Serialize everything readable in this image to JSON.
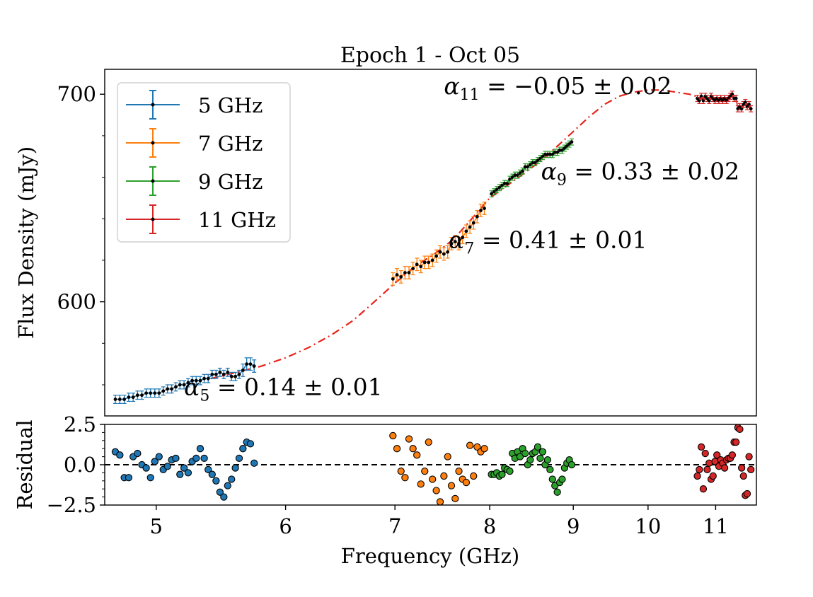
{
  "chart_data": [
    {
      "type": "scatter",
      "title": "Epoch 1 - Oct 05",
      "xlabel": "",
      "ylabel": "Flux Density (mJy)",
      "xscale": "log",
      "xlim": [
        4.65,
        11.65
      ],
      "ylim": [
        545,
        712
      ],
      "yticks": [
        600,
        700
      ],
      "ytick_labels": [
        "600",
        "700"
      ],
      "legend": {
        "placement": "top-left",
        "entries": [
          "5 GHz",
          "7 GHz",
          "9 GHz",
          "11 GHz"
        ]
      },
      "colors": {
        "5 GHz": "#1f77b4",
        "7 GHz": "#ff7f0e",
        "9 GHz": "#2ca02c",
        "11 GHz": "#d62728",
        "fit": "#e8231a"
      },
      "annotations": [
        {
          "sym": "α",
          "sub": "5",
          "text": " = 0.14 ± 0.01",
          "x": 5.2,
          "y": 555
        },
        {
          "sym": "α",
          "sub": "7",
          "text": " = 0.41 ± 0.01",
          "x": 7.55,
          "y": 626
        },
        {
          "sym": "α",
          "sub": "9",
          "text": " = 0.33 ± 0.02",
          "x": 8.6,
          "y": 659
        },
        {
          "sym": "α",
          "sub": "11",
          "text": " = −0.05 ± 0.02",
          "x": 7.5,
          "y": 700
        }
      ],
      "series": [
        {
          "name": "5 GHz",
          "x": [
            4.72,
            4.75,
            4.78,
            4.81,
            4.84,
            4.87,
            4.9,
            4.93,
            4.96,
            4.99,
            5.02,
            5.05,
            5.08,
            5.11,
            5.14,
            5.17,
            5.2,
            5.23,
            5.26,
            5.29,
            5.32,
            5.35,
            5.38,
            5.41,
            5.44,
            5.47,
            5.5,
            5.53,
            5.56,
            5.59,
            5.62,
            5.65,
            5.68,
            5.71,
            5.74
          ],
          "y": [
            553,
            553,
            553,
            554,
            554,
            555,
            555,
            556,
            556,
            556,
            556,
            557,
            558,
            558,
            559,
            560,
            560,
            561,
            562,
            562,
            562,
            563,
            563,
            565,
            565,
            566,
            565,
            566,
            564,
            564,
            565,
            567,
            570,
            570,
            569
          ],
          "err": [
            2,
            2,
            2,
            2,
            2,
            2,
            2,
            2,
            2,
            2,
            2,
            2,
            2,
            2,
            2,
            2,
            2,
            2,
            2,
            2,
            2,
            2,
            2,
            2,
            2,
            2,
            2,
            2,
            2,
            2,
            2,
            3,
            3,
            3,
            3
          ]
        },
        {
          "name": "7 GHz",
          "x": [
            6.98,
            7.02,
            7.06,
            7.1,
            7.14,
            7.18,
            7.22,
            7.26,
            7.3,
            7.34,
            7.38,
            7.42,
            7.46,
            7.5,
            7.54,
            7.58,
            7.62,
            7.66,
            7.7,
            7.74,
            7.78,
            7.82,
            7.86,
            7.9,
            7.94
          ],
          "y": [
            611,
            613,
            612,
            614,
            614,
            616,
            618,
            617,
            619,
            619,
            620,
            622,
            624,
            623,
            624,
            628,
            629,
            628,
            631,
            634,
            636,
            638,
            641,
            644,
            645
          ],
          "err": [
            3,
            3,
            3,
            3,
            3,
            3,
            3,
            3,
            3,
            3,
            3,
            3,
            3,
            3,
            3,
            3,
            3,
            3,
            3,
            3,
            3,
            3,
            3,
            3,
            3
          ]
        },
        {
          "name": "9 GHz",
          "x": [
            8.02,
            8.05,
            8.08,
            8.11,
            8.14,
            8.17,
            8.2,
            8.23,
            8.26,
            8.29,
            8.32,
            8.35,
            8.38,
            8.41,
            8.44,
            8.47,
            8.5,
            8.53,
            8.56,
            8.59,
            8.62,
            8.65,
            8.68,
            8.71,
            8.74,
            8.77,
            8.8,
            8.83,
            8.86,
            8.89,
            8.92,
            8.95,
            8.98
          ],
          "y": [
            652,
            653,
            654,
            655,
            656,
            657,
            657,
            659,
            660,
            661,
            661,
            662,
            663,
            665,
            665,
            666,
            667,
            667,
            668,
            669,
            670,
            671,
            671,
            671,
            671,
            672,
            672,
            673,
            673,
            674,
            675,
            676,
            677
          ],
          "err": [
            1.5,
            1.5,
            1.5,
            1.5,
            1.5,
            1.5,
            1.5,
            1.5,
            1.5,
            1.5,
            1.5,
            1.5,
            1.5,
            1.5,
            1.5,
            1.5,
            1.5,
            1.5,
            1.5,
            1.5,
            1.5,
            1.5,
            1.5,
            1.5,
            1.5,
            1.5,
            1.5,
            1.5,
            1.5,
            1.5,
            1.5,
            1.5,
            1.5
          ]
        },
        {
          "name": "11 GHz",
          "x": [
            10.72,
            10.75,
            10.78,
            10.81,
            10.84,
            10.87,
            10.9,
            10.93,
            10.96,
            10.99,
            11.02,
            11.05,
            11.08,
            11.11,
            11.14,
            11.17,
            11.2,
            11.23,
            11.26,
            11.29,
            11.32,
            11.35,
            11.38,
            11.41,
            11.44,
            11.47,
            11.5,
            11.53,
            11.56
          ],
          "y": [
            698,
            697,
            699,
            697,
            699,
            698,
            697,
            699,
            698,
            697,
            698,
            697,
            698,
            697,
            698,
            697,
            698,
            699,
            700,
            698,
            698,
            693,
            694,
            693,
            695,
            696,
            694,
            695,
            693
          ],
          "err": [
            1.5,
            1.5,
            1.5,
            1.5,
            1.5,
            1.5,
            1.5,
            1.5,
            1.5,
            1.5,
            1.5,
            1.5,
            1.5,
            1.5,
            1.5,
            1.5,
            1.5,
            1.5,
            1.5,
            1.5,
            1.5,
            1.5,
            1.5,
            1.5,
            1.5,
            1.5,
            1.5,
            1.5,
            1.5
          ]
        }
      ],
      "fit": {
        "style": "dash-dot",
        "x": [
          5.4,
          5.6,
          5.8,
          6.0,
          6.2,
          6.4,
          6.6,
          6.8,
          7.0,
          7.2,
          7.4,
          7.6,
          7.8,
          8.0,
          8.2,
          8.4,
          8.6,
          8.8,
          9.0,
          9.2,
          9.4,
          9.6,
          9.8,
          10.0,
          10.2,
          10.4,
          10.6,
          10.8
        ],
        "y": [
          563,
          566,
          569,
          573,
          578,
          584,
          591,
          600,
          609,
          617,
          623,
          630,
          640,
          650,
          656,
          662,
          668,
          675,
          682,
          689,
          695,
          699,
          701,
          702,
          702,
          701,
          700,
          698
        ]
      }
    },
    {
      "type": "scatter",
      "title": "",
      "xlabel": "Frequency (GHz)",
      "ylabel": "Residual",
      "xscale": "log",
      "xlim": [
        4.65,
        11.65
      ],
      "ylim": [
        -2.5,
        2.5
      ],
      "yticks": [
        -2.5,
        0.0,
        2.5
      ],
      "ytick_labels": [
        "−2.5",
        "0.0",
        "2.5"
      ],
      "xticks": [
        5,
        6,
        7,
        8,
        9,
        10,
        11
      ],
      "xtick_labels": [
        "5",
        "6",
        "7",
        "8",
        "9",
        "10",
        "11"
      ],
      "reference_line": {
        "y": 0,
        "style": "dashed"
      },
      "series": [
        {
          "name": "5 GHz",
          "x": [
            4.72,
            4.75,
            4.78,
            4.81,
            4.84,
            4.87,
            4.9,
            4.93,
            4.96,
            4.99,
            5.02,
            5.05,
            5.08,
            5.11,
            5.14,
            5.17,
            5.2,
            5.23,
            5.26,
            5.29,
            5.32,
            5.35,
            5.38,
            5.41,
            5.44,
            5.47,
            5.5,
            5.53,
            5.56,
            5.59,
            5.62,
            5.65,
            5.68,
            5.71,
            5.74
          ],
          "y": [
            0.8,
            0.6,
            -0.8,
            -0.8,
            0.5,
            0.7,
            0.0,
            -0.2,
            -0.8,
            0.2,
            0.5,
            -0.3,
            -0.1,
            0.3,
            0.4,
            -0.6,
            -0.2,
            -0.5,
            0.2,
            0.4,
            1.0,
            0.4,
            -0.3,
            -0.6,
            -1.0,
            -1.7,
            -2.0,
            -1.3,
            -0.9,
            -0.2,
            0.4,
            1.0,
            1.4,
            1.3,
            0.1
          ]
        },
        {
          "name": "7 GHz",
          "x": [
            6.98,
            7.02,
            7.06,
            7.1,
            7.14,
            7.18,
            7.22,
            7.26,
            7.3,
            7.34,
            7.38,
            7.42,
            7.46,
            7.5,
            7.54,
            7.58,
            7.62,
            7.66,
            7.7,
            7.74,
            7.78,
            7.82,
            7.86,
            7.9,
            7.94
          ],
          "y": [
            1.8,
            1.0,
            -0.4,
            -0.8,
            1.6,
            1.0,
            0.6,
            -1.2,
            -0.4,
            1.4,
            -0.9,
            -1.6,
            -2.3,
            -0.7,
            0.5,
            -1.3,
            -2.1,
            -0.4,
            -0.9,
            -1.1,
            1.2,
            -0.7,
            1.1,
            0.8,
            1.0
          ]
        },
        {
          "name": "9 GHz",
          "x": [
            8.02,
            8.05,
            8.08,
            8.11,
            8.14,
            8.17,
            8.2,
            8.23,
            8.26,
            8.29,
            8.32,
            8.35,
            8.38,
            8.41,
            8.44,
            8.47,
            8.5,
            8.53,
            8.56,
            8.59,
            8.62,
            8.65,
            8.68,
            8.71,
            8.74,
            8.77,
            8.8,
            8.83,
            8.86,
            8.89,
            8.92,
            8.95,
            8.98
          ],
          "y": [
            -0.6,
            -0.6,
            -0.5,
            -0.7,
            -0.6,
            -0.2,
            -0.3,
            -0.4,
            0.7,
            0.4,
            0.8,
            0.5,
            1.0,
            0.7,
            0.0,
            0.3,
            0.7,
            0.8,
            1.1,
            0.4,
            0.8,
            0.0,
            0.3,
            -0.3,
            -0.9,
            -1.3,
            -1.7,
            -1.1,
            -0.9,
            -0.2,
            0.1,
            0.3,
            0.0
          ]
        },
        {
          "name": "11 GHz",
          "x": [
            10.72,
            10.75,
            10.78,
            10.81,
            10.84,
            10.87,
            10.9,
            10.93,
            10.96,
            10.99,
            11.02,
            11.05,
            11.08,
            11.11,
            11.14,
            11.17,
            11.2,
            11.23,
            11.26,
            11.29,
            11.32,
            11.35,
            11.38,
            11.41,
            11.44,
            11.47,
            11.5,
            11.53,
            11.56
          ],
          "y": [
            -0.7,
            -0.3,
            1.1,
            -1.5,
            0.7,
            -0.3,
            0.1,
            -0.9,
            -0.7,
            0.2,
            0.6,
            -0.1,
            0.3,
            0.1,
            -0.2,
            0.3,
            0.4,
            0.4,
            0.6,
            1.4,
            1.4,
            2.3,
            2.2,
            -0.2,
            -0.7,
            -1.9,
            -1.8,
            0.5,
            -0.3
          ]
        }
      ]
    }
  ]
}
